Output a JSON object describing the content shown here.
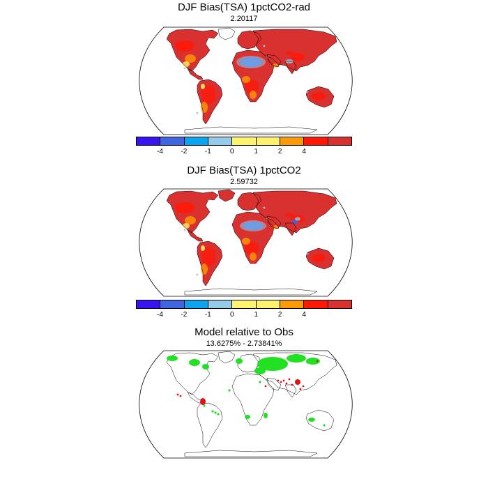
{
  "panels": [
    {
      "title": "DJF Bias(TSA) 1pctCO2-rad",
      "subtitle": "2.20117",
      "has_colorbar": true
    },
    {
      "title": "DJF Bias(TSA) 1pctCO2",
      "subtitle": "2.59732",
      "has_colorbar": true
    },
    {
      "title": "Model relative to Obs",
      "subtitle": "13.6275% - 2.73841%",
      "has_colorbar": false
    }
  ],
  "colorbar": {
    "colors": [
      "#3a14f0",
      "#3f66e0",
      "#0aa5ee",
      "#96cbe8",
      "#fff36b",
      "#fff16b",
      "#ff9a07",
      "#ff1806",
      "#d93030"
    ],
    "tick_labels": [
      "-4",
      "-2",
      "-1",
      "0",
      "1",
      "2",
      "4"
    ]
  },
  "map_palette": {
    "warm": "#d93030",
    "hot": "#ff1806",
    "orange": "#ff9a07",
    "yellow": "#fff36b",
    "light_blue": "#96cbe8",
    "blue": "#3f66e0",
    "green": "#22e022",
    "red": "#e81010"
  }
}
